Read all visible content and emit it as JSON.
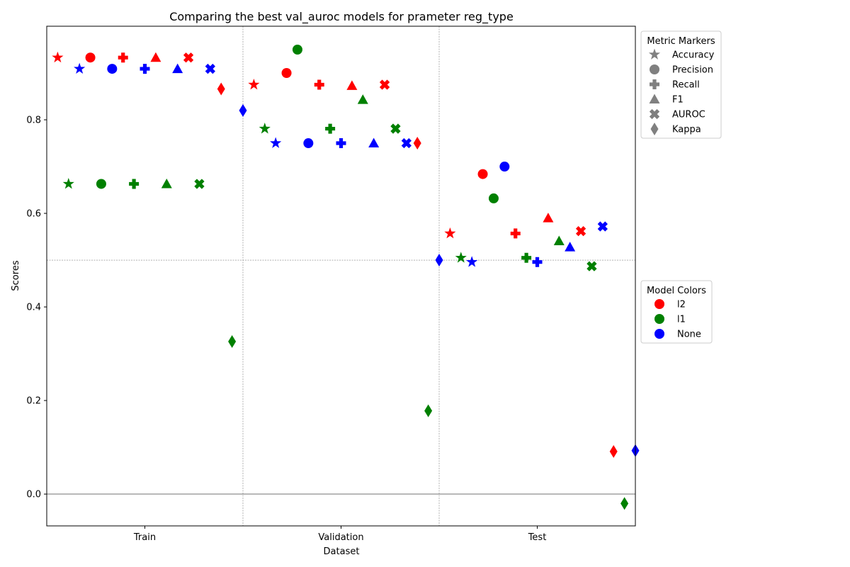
{
  "chart_data": {
    "type": "scatter",
    "title": "Comparing the best val_auroc models for prameter reg_type",
    "xlabel": "Dataset",
    "ylabel": "Scores",
    "categories": [
      "Train",
      "Validation",
      "Test"
    ],
    "ylim": [
      -0.068,
      1.0
    ],
    "yticks": [
      0.0,
      0.2,
      0.4,
      0.6,
      0.8
    ],
    "ytick_labels": [
      "0.0",
      "0.2",
      "0.4",
      "0.6",
      "0.8"
    ],
    "reference_lines": [
      0.0,
      0.5
    ],
    "metrics": [
      "Accuracy",
      "Precision",
      "Recall",
      "F1",
      "AUROC",
      "Kappa"
    ],
    "metric_markers": [
      "star",
      "circle",
      "plus",
      "triangle",
      "x",
      "diamond"
    ],
    "models": [
      {
        "name": "l2",
        "color": "#ff0000"
      },
      {
        "name": "l1",
        "color": "#008000"
      },
      {
        "name": "None",
        "color": "#0000ff"
      }
    ],
    "legend_metrics_title": "Metric Markers",
    "legend_models_title": "Model Colors",
    "legend_placement": "outside-right",
    "marker_legend_color": "#808080",
    "values": {
      "Train": {
        "l2": [
          0.933,
          0.933,
          0.933,
          0.933,
          0.933,
          0.866
        ],
        "l1": [
          0.663,
          0.663,
          0.663,
          0.663,
          0.663,
          0.326
        ],
        "None": [
          0.909,
          0.909,
          0.909,
          0.909,
          0.909,
          0.82
        ]
      },
      "Validation": {
        "l2": [
          0.875,
          0.9,
          0.875,
          0.873,
          0.875,
          0.75
        ],
        "l1": [
          0.781,
          0.95,
          0.781,
          0.843,
          0.781,
          0.178
        ],
        "None": [
          0.75,
          0.75,
          0.75,
          0.75,
          0.75,
          0.5
        ]
      },
      "Test": {
        "l2": [
          0.557,
          0.684,
          0.557,
          0.59,
          0.562,
          0.091
        ],
        "l1": [
          0.505,
          0.632,
          0.505,
          0.541,
          0.487,
          -0.02
        ],
        "None": [
          0.496,
          0.7,
          0.496,
          0.528,
          0.572,
          0.093
        ]
      }
    }
  }
}
